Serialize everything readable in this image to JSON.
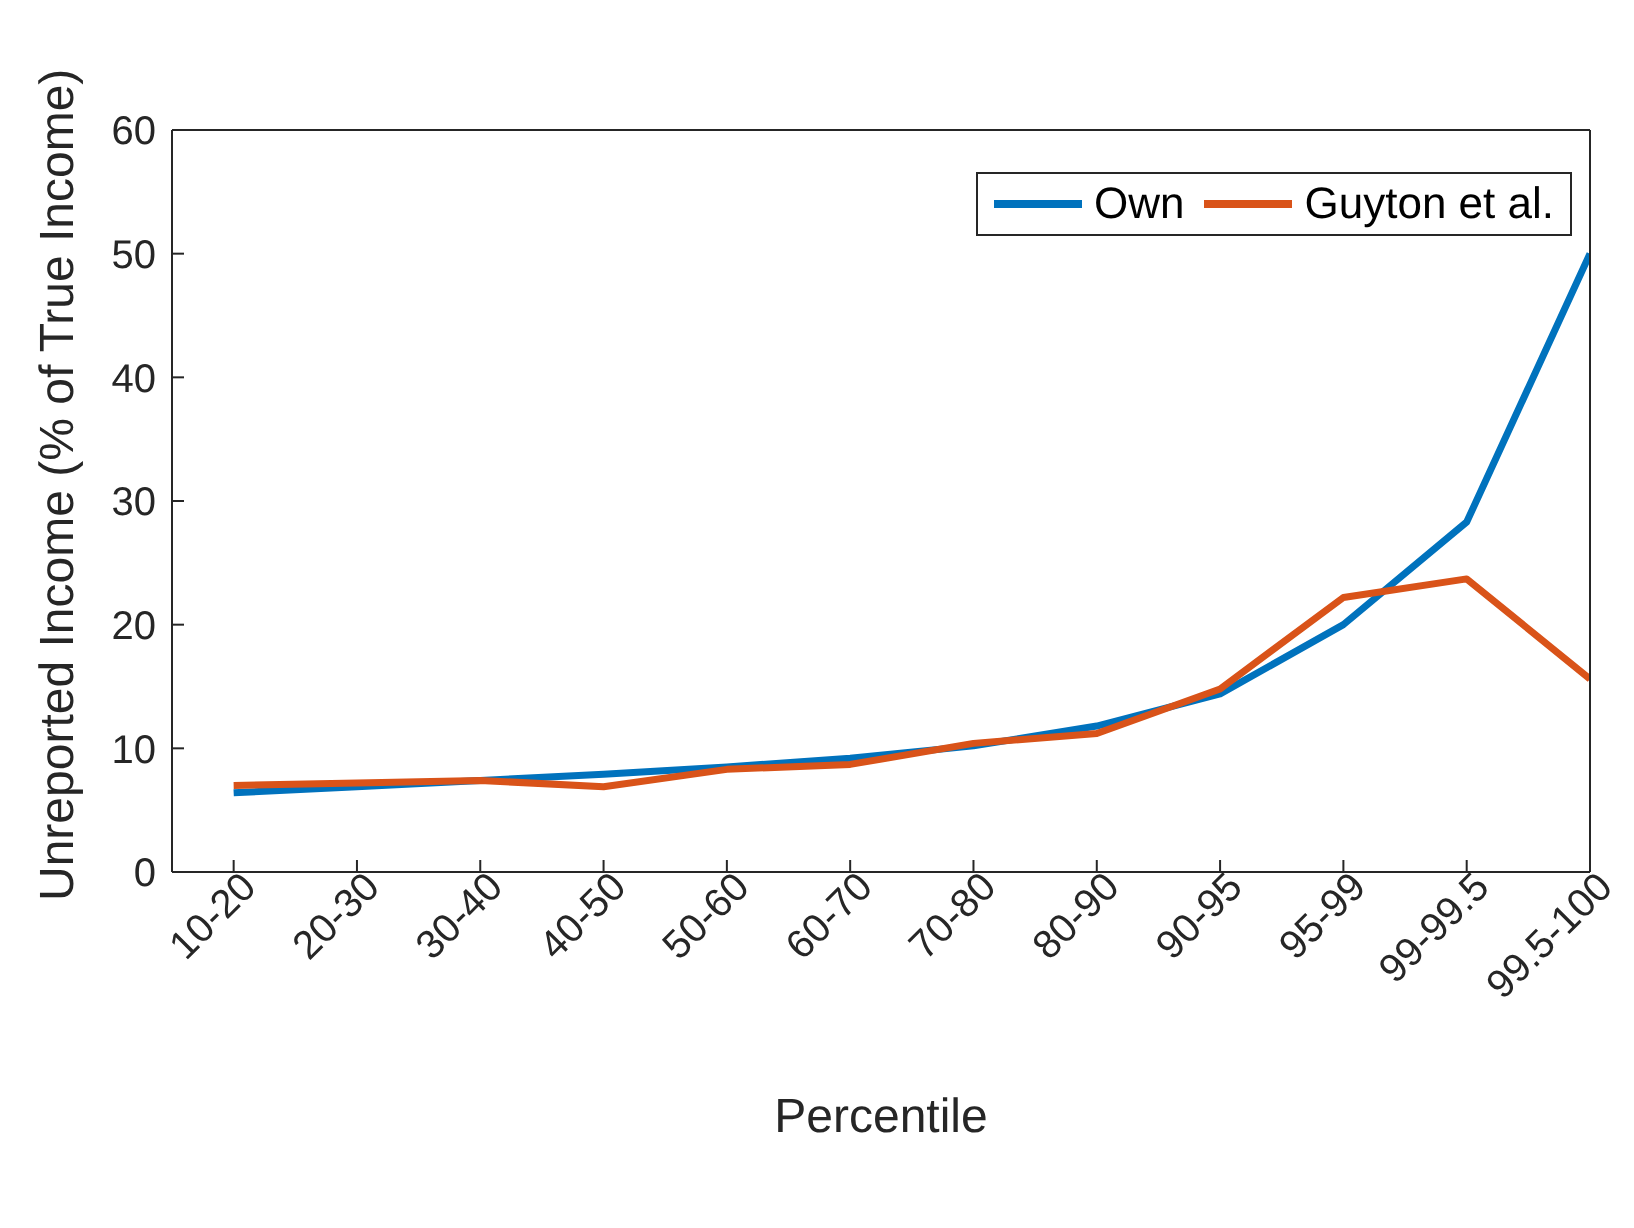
{
  "chart_data": {
    "type": "line",
    "xlabel": "Percentile",
    "ylabel": "Unreported Income (% of True Income)",
    "categories": [
      "10-20",
      "20-30",
      "30-40",
      "40-50",
      "50-60",
      "60-70",
      "70-80",
      "80-90",
      "90-95",
      "95-99",
      "99-99.5",
      "99.5-100"
    ],
    "series": [
      {
        "name": "Own",
        "color": "#0072bd",
        "values": [
          6.4,
          6.9,
          7.4,
          7.9,
          8.5,
          9.2,
          10.2,
          11.8,
          14.4,
          20.0,
          28.3,
          50.0
        ]
      },
      {
        "name": "Guyton et al.",
        "color": "#d95319",
        "values": [
          7.0,
          7.2,
          7.4,
          6.9,
          8.3,
          8.7,
          10.4,
          11.2,
          14.8,
          22.2,
          23.7,
          15.6
        ]
      }
    ],
    "ylim": [
      0,
      60
    ],
    "yticks": [
      0,
      10,
      20,
      30,
      40,
      50,
      60
    ],
    "grid": false,
    "legend": "top right",
    "marker": "none",
    "line_style": "solid"
  }
}
